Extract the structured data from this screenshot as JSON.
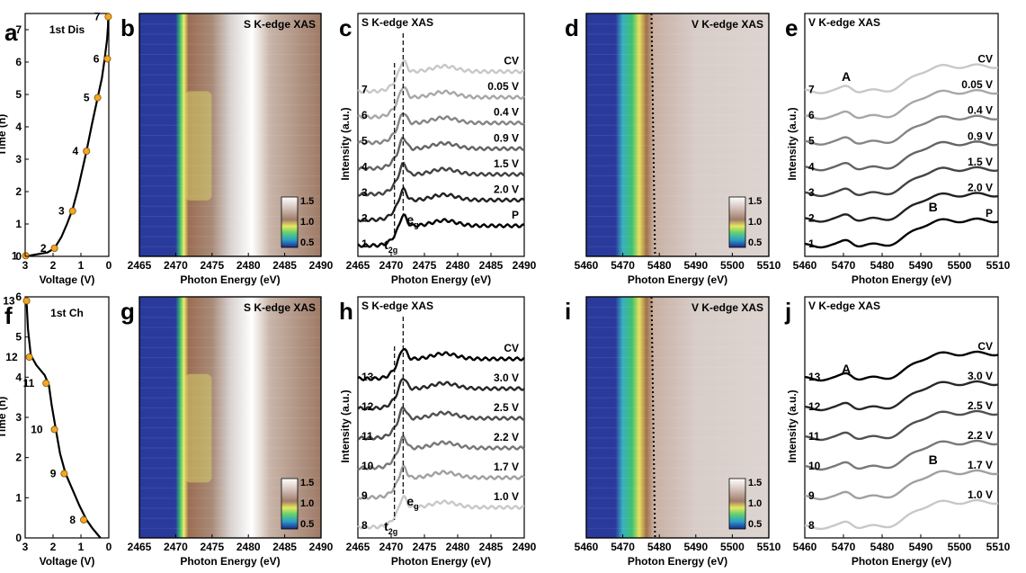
{
  "colors": {
    "heatmap_low": "#2b3aa0",
    "heatmap_mid": "#f0ee6a",
    "heatmap_high": "#f2eeee",
    "heatmap_base": "#a07c6a",
    "dot": "#f5a623",
    "curve": "#000000"
  },
  "chart_data": [
    {
      "id": "a",
      "panel_label": "a",
      "type": "line",
      "title": "1st Dis",
      "xlabel": "Voltage (V)",
      "ylabel": "Time (h)",
      "xlim": [
        3,
        0
      ],
      "ylim": [
        0,
        7.5
      ],
      "x_ticks": [
        "3",
        "2",
        "1",
        "0"
      ],
      "y_ticks": [
        "0",
        "1",
        "2",
        "3",
        "4",
        "5",
        "6",
        "7"
      ],
      "x": [
        2.98,
        2.6,
        2.2,
        1.95,
        1.7,
        1.5,
        1.3,
        1.1,
        0.8,
        0.6,
        0.4,
        0.25,
        0.15,
        0.06,
        0.03,
        0.02
      ],
      "y": [
        0,
        0.06,
        0.12,
        0.25,
        0.6,
        1.0,
        1.45,
        2.1,
        3.25,
        4.1,
        4.9,
        5.5,
        6.1,
        6.7,
        7.1,
        7.4
      ],
      "markers": [
        {
          "label": "1",
          "x": 2.98,
          "y": 0.02
        },
        {
          "label": "2",
          "x": 1.95,
          "y": 0.25
        },
        {
          "label": "3",
          "x": 1.3,
          "y": 1.4
        },
        {
          "label": "4",
          "x": 0.8,
          "y": 3.25
        },
        {
          "label": "5",
          "x": 0.4,
          "y": 4.9
        },
        {
          "label": "6",
          "x": 0.05,
          "y": 6.1
        },
        {
          "label": "7",
          "x": 0.02,
          "y": 7.4
        }
      ]
    },
    {
      "id": "b",
      "panel_label": "b",
      "type": "heatmap",
      "title": "S K-edge XAS",
      "xlabel": "Photon Energy (eV)",
      "xlim": [
        2465,
        2490
      ],
      "x_ticks": [
        "2465",
        "2470",
        "2475",
        "2480",
        "2485",
        "2490"
      ],
      "colorbar_ticks": [
        "1.5",
        "1.0",
        "0.5"
      ],
      "edge": 2470
    },
    {
      "id": "c",
      "panel_label": "c",
      "type": "line",
      "title": "S K-edge XAS",
      "xlabel": "Photon Energy (eV)",
      "ylabel": "Intensity (a.u.)",
      "xlim": [
        2465,
        2490
      ],
      "x_ticks": [
        "2465",
        "2470",
        "2475",
        "2480",
        "2485",
        "2490"
      ],
      "left_labels": [
        "1",
        "2",
        "3",
        "4",
        "5",
        "6",
        "7"
      ],
      "right_labels": [
        "P",
        "2.0 V",
        "1.5 V",
        "0.9 V",
        "0.4 V",
        "0.05 V",
        "CV"
      ],
      "annotations": [
        {
          "text": "t",
          "sub": "2g",
          "x": 2470.5
        },
        {
          "text": "e",
          "sub": "g",
          "x": 2471.8
        }
      ]
    },
    {
      "id": "d",
      "panel_label": "d",
      "type": "heatmap",
      "title": "V K-edge XAS",
      "xlabel": "Photon Energy (eV)",
      "xlim": [
        5460,
        5510
      ],
      "x_ticks": [
        "5460",
        "5470",
        "5480",
        "5490",
        "5500",
        "5510"
      ],
      "colorbar_ticks": [
        "1.5",
        "1.0",
        "0.5"
      ],
      "edge": 5468
    },
    {
      "id": "e",
      "panel_label": "e",
      "type": "line",
      "title": "V K-edge XAS",
      "xlabel": "Photon Energy (eV)",
      "ylabel": "Intensity (a.u.)",
      "xlim": [
        5460,
        5510
      ],
      "x_ticks": [
        "5460",
        "5470",
        "5480",
        "5490",
        "5500",
        "5510"
      ],
      "left_labels": [
        "1",
        "2",
        "3",
        "4",
        "5",
        "6",
        "7"
      ],
      "right_labels": [
        "P",
        "2.0 V",
        "1.5 V",
        "0.9 V",
        "0.4 V",
        "0.05 V",
        "CV"
      ],
      "annotations": [
        {
          "text": "A",
          "x": 5470
        },
        {
          "text": "B",
          "x": 5492
        }
      ]
    },
    {
      "id": "f",
      "panel_label": "f",
      "type": "line",
      "title": "1st Ch",
      "xlabel": "Voltage (V)",
      "ylabel": "Time (h)",
      "xlim": [
        3,
        0
      ],
      "ylim": [
        0,
        6
      ],
      "x_ticks": [
        "3",
        "2",
        "1",
        "0"
      ],
      "y_ticks": [
        "0",
        "1",
        "2",
        "3",
        "4",
        "5",
        "6"
      ],
      "x": [
        0.3,
        0.6,
        0.8,
        1.05,
        1.3,
        1.55,
        1.75,
        1.9,
        2.05,
        2.15,
        2.3,
        2.6,
        2.8,
        2.9,
        2.95
      ],
      "y": [
        0,
        0.25,
        0.45,
        0.8,
        1.2,
        1.6,
        2.1,
        2.7,
        3.3,
        3.8,
        4.05,
        4.3,
        4.55,
        5.2,
        5.9
      ],
      "markers": [
        {
          "label": "8",
          "x": 0.9,
          "y": 0.45
        },
        {
          "label": "9",
          "x": 1.6,
          "y": 1.6
        },
        {
          "label": "10",
          "x": 1.95,
          "y": 2.7
        },
        {
          "label": "11",
          "x": 2.25,
          "y": 3.85
        },
        {
          "label": "12",
          "x": 2.85,
          "y": 4.5
        },
        {
          "label": "13",
          "x": 2.95,
          "y": 5.9
        }
      ]
    },
    {
      "id": "g",
      "panel_label": "g",
      "type": "heatmap",
      "title": "S K-edge XAS",
      "xlabel": "Photon Energy (eV)",
      "xlim": [
        2465,
        2490
      ],
      "x_ticks": [
        "2465",
        "2470",
        "2475",
        "2480",
        "2485",
        "2490"
      ],
      "colorbar_ticks": [
        "1.5",
        "1.0",
        "0.5"
      ],
      "edge": 2470
    },
    {
      "id": "h",
      "panel_label": "h",
      "type": "line",
      "title": "S K-edge XAS",
      "xlabel": "Photon Energy (eV)",
      "ylabel": "Intensity (a.u.)",
      "xlim": [
        2465,
        2490
      ],
      "x_ticks": [
        "2465",
        "2470",
        "2475",
        "2480",
        "2485",
        "2490"
      ],
      "left_labels": [
        "8",
        "9",
        "10",
        "11",
        "12",
        "13"
      ],
      "right_labels": [
        "1.0 V",
        "1.7 V",
        "2.2 V",
        "2.5 V",
        "3.0 V",
        "CV"
      ],
      "annotations": [
        {
          "text": "t",
          "sub": "2g",
          "x": 2470.5
        },
        {
          "text": "e",
          "sub": "g",
          "x": 2471.8
        }
      ]
    },
    {
      "id": "i",
      "panel_label": "i",
      "type": "heatmap",
      "title": "V K-edge XAS",
      "xlabel": "Photon Energy (eV)",
      "xlim": [
        5460,
        5510
      ],
      "x_ticks": [
        "5460",
        "5470",
        "5480",
        "5490",
        "5500",
        "5510"
      ],
      "colorbar_ticks": [
        "1.5",
        "1.0",
        "0.5"
      ],
      "edge": 5468
    },
    {
      "id": "j",
      "panel_label": "j",
      "type": "line",
      "title": "V K-edge XAS",
      "xlabel": "Photon Energy (eV)",
      "ylabel": "Intensity (a.u.)",
      "xlim": [
        5460,
        5510
      ],
      "x_ticks": [
        "5460",
        "5470",
        "5480",
        "5490",
        "5500",
        "5510"
      ],
      "left_labels": [
        "8",
        "9",
        "10",
        "11",
        "12",
        "13"
      ],
      "right_labels": [
        "1.0 V",
        "1.7 V",
        "2.2 V",
        "2.5 V",
        "3.0 V",
        "CV"
      ],
      "annotations": [
        {
          "text": "A",
          "x": 5470
        },
        {
          "text": "B",
          "x": 5492
        }
      ]
    }
  ]
}
